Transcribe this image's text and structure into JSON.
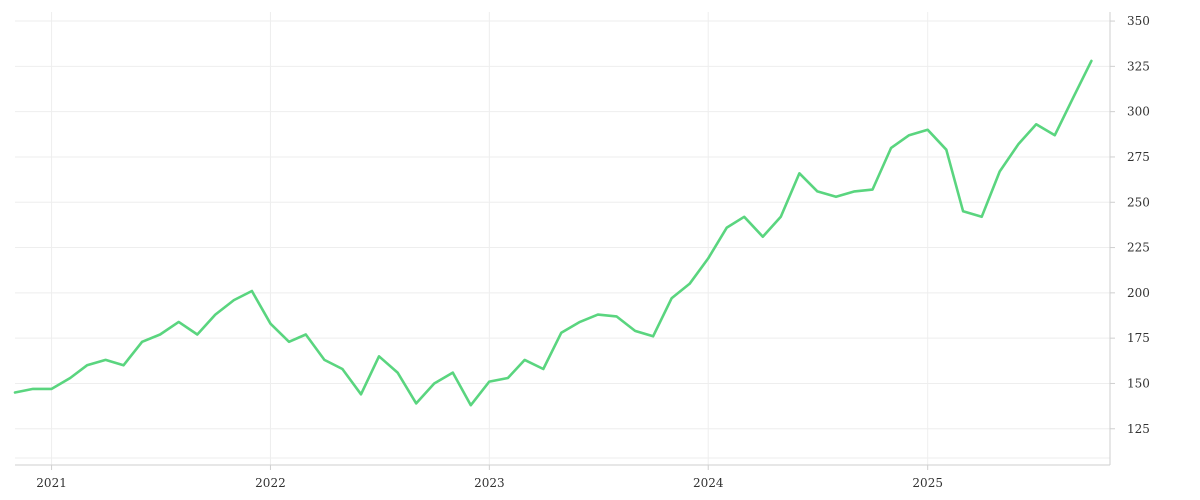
{
  "chart_data": {
    "type": "line",
    "title": "",
    "xlabel": "",
    "ylabel": "",
    "x_tick_labels": [
      "2021",
      "2022",
      "2023",
      "2024",
      "2025"
    ],
    "y_tick_labels": [
      "125",
      "150",
      "175",
      "200",
      "225",
      "250",
      "275",
      "300",
      "325",
      "350"
    ],
    "y_ticks": [
      125,
      150,
      175,
      200,
      225,
      250,
      275,
      300,
      325,
      350
    ],
    "ylim": [
      105,
      355
    ],
    "xlim": [
      "2020-11-01",
      "2025-11-01"
    ],
    "grid": true,
    "line_color": "#5ad57f",
    "series": [
      {
        "x": [
          "2020-11-01",
          "2020-12-01",
          "2021-01-01",
          "2021-02-01",
          "2021-03-01",
          "2021-04-01",
          "2021-05-01",
          "2021-06-01",
          "2021-07-01",
          "2021-08-01",
          "2021-09-01",
          "2021-10-01",
          "2021-11-01",
          "2021-12-01",
          "2022-01-01",
          "2022-02-01",
          "2022-03-01",
          "2022-04-01",
          "2022-05-01",
          "2022-06-01",
          "2022-07-01",
          "2022-08-01",
          "2022-09-01",
          "2022-10-01",
          "2022-11-01",
          "2022-12-01",
          "2023-01-01",
          "2023-02-01",
          "2023-03-01",
          "2023-04-01",
          "2023-05-01",
          "2023-06-01",
          "2023-07-01",
          "2023-08-01",
          "2023-09-01",
          "2023-10-01",
          "2023-11-01",
          "2023-12-01",
          "2024-01-01",
          "2024-02-01",
          "2024-03-01",
          "2024-04-01",
          "2024-05-01",
          "2024-06-01",
          "2024-07-01",
          "2024-08-01",
          "2024-09-01",
          "2024-10-01",
          "2024-11-01",
          "2024-12-01",
          "2025-01-01",
          "2025-02-01",
          "2025-03-01",
          "2025-04-01",
          "2025-05-01",
          "2025-06-01",
          "2025-07-01",
          "2025-08-01",
          "2025-09-01",
          "2025-10-01"
        ],
        "values": [
          145,
          147,
          147,
          153,
          160,
          163,
          160,
          173,
          177,
          184,
          177,
          188,
          196,
          201,
          183,
          173,
          177,
          163,
          158,
          144,
          165,
          156,
          139,
          150,
          156,
          138,
          151,
          153,
          163,
          158,
          178,
          184,
          188,
          187,
          179,
          176,
          197,
          205,
          219,
          236,
          242,
          231,
          242,
          266,
          256,
          253,
          256,
          257,
          280,
          287,
          290,
          279,
          245,
          242,
          267,
          282,
          293,
          287,
          308,
          328
        ]
      }
    ]
  }
}
